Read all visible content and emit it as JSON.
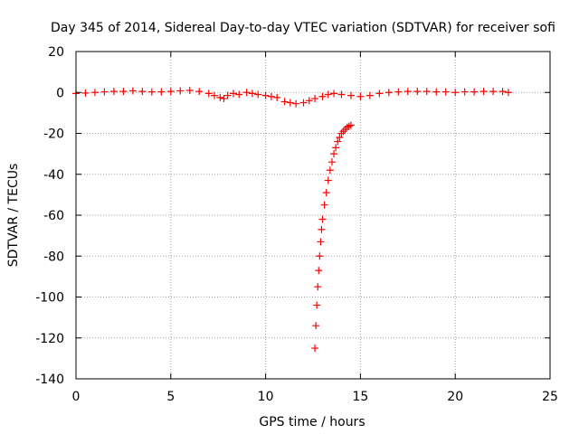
{
  "chart_data": {
    "type": "scatter",
    "title": "Day 345 of 2014, Sidereal Day-to-day VTEC variation (SDTVAR) for receiver sofi",
    "xlabel": "GPS time / hours",
    "ylabel": "SDTVAR / TECUs",
    "xlim": [
      0,
      25
    ],
    "ylim": [
      -140,
      20
    ],
    "xticks": [
      0,
      5,
      10,
      15,
      20,
      25
    ],
    "yticks": [
      20,
      0,
      -20,
      -40,
      -60,
      -80,
      -100,
      -120,
      -140
    ],
    "grid": true,
    "marker": "+",
    "colors": {
      "series": "#ff0000",
      "grid": "#a0a0a0",
      "axes": "#000000"
    },
    "series": [
      {
        "name": "SDTVAR",
        "x": [
          0.0,
          0.5,
          1.0,
          1.5,
          2.0,
          2.5,
          3.0,
          3.5,
          4.0,
          4.5,
          5.0,
          5.5,
          6.0,
          6.5,
          7.0,
          7.3,
          7.6,
          7.8,
          8.0,
          8.3,
          8.6,
          9.0,
          9.3,
          9.6,
          10.0,
          10.3,
          10.6,
          11.0,
          11.3,
          11.6,
          12.0,
          12.3,
          12.6,
          13.0,
          13.3,
          13.6,
          14.0,
          14.5,
          15.0,
          15.5,
          16.0,
          16.5,
          17.0,
          17.5,
          18.0,
          18.5,
          19.0,
          19.5,
          20.0,
          20.5,
          21.0,
          21.5,
          22.0,
          22.5,
          22.8,
          12.6,
          12.65,
          12.7,
          12.75,
          12.8,
          12.85,
          12.9,
          12.95,
          13.0,
          13.1,
          13.2,
          13.3,
          13.4,
          13.5,
          13.6,
          13.7,
          13.8,
          13.9,
          14.0,
          14.1,
          14.2,
          14.3,
          14.4,
          14.5
        ],
        "y": [
          -0.5,
          -0.3,
          0.0,
          0.3,
          0.5,
          0.5,
          0.8,
          0.5,
          0.3,
          0.3,
          0.5,
          0.8,
          1.0,
          0.5,
          -0.5,
          -1.5,
          -2.5,
          -3.0,
          -1.5,
          -0.5,
          -1.0,
          0.0,
          -0.5,
          -1.0,
          -1.5,
          -2.0,
          -2.5,
          -4.5,
          -5.0,
          -5.5,
          -5.0,
          -4.0,
          -3.0,
          -2.0,
          -1.0,
          -0.5,
          -1.0,
          -1.5,
          -2.0,
          -1.5,
          -0.5,
          0.0,
          0.3,
          0.5,
          0.5,
          0.5,
          0.3,
          0.3,
          0.0,
          0.3,
          0.3,
          0.5,
          0.5,
          0.5,
          0.0,
          -125,
          -114,
          -104,
          -95,
          -87,
          -80,
          -73,
          -67,
          -62,
          -55,
          -49,
          -43,
          -38,
          -34,
          -30,
          -27,
          -24,
          -22,
          -20,
          -19,
          -18,
          -17,
          -16.5,
          -16
        ]
      }
    ]
  }
}
